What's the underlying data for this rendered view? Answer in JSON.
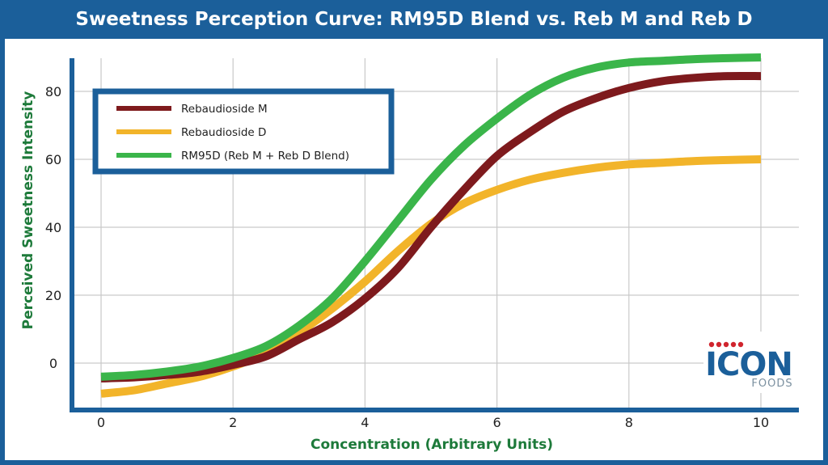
{
  "chart_data": {
    "type": "line",
    "title": "Sweetness Perception Curve: RM95D Blend vs. Reb M and Reb D",
    "xlabel": "Concentration (Arbitrary Units)",
    "ylabel": "Perceived Sweetness Intensity",
    "xlim": [
      -0.4,
      10.5
    ],
    "ylim": [
      -14,
      90
    ],
    "xticks": [
      0,
      2,
      4,
      6,
      8,
      10
    ],
    "yticks": [
      0,
      20,
      40,
      60,
      80
    ],
    "grid": true,
    "legend_position": "top-left",
    "x": [
      0,
      0.5,
      1,
      1.5,
      2,
      2.5,
      3,
      3.5,
      4,
      4.5,
      5,
      5.5,
      6,
      6.5,
      7,
      7.5,
      8,
      8.5,
      9,
      9.5,
      10
    ],
    "series": [
      {
        "name": "Rebaudioside M",
        "color": "#7e1a1d",
        "values": [
          -4.5,
          -4.2,
          -3.5,
          -2.5,
          -0.5,
          2,
          7,
          12,
          19,
          28,
          40,
          51,
          61,
          68,
          74,
          78,
          81,
          83,
          84,
          84.5,
          84.5
        ]
      },
      {
        "name": "Rebaudioside D",
        "color": "#f2b42a",
        "values": [
          -9,
          -8,
          -6,
          -4,
          -1,
          3,
          9,
          16,
          24,
          33,
          41,
          47,
          51,
          54,
          56,
          57.5,
          58.5,
          59,
          59.5,
          59.8,
          60
        ]
      },
      {
        "name": "RM95D (Reb M + Reb D Blend)",
        "color": "#3ab54a",
        "values": [
          -4,
          -3.5,
          -2.5,
          -1,
          1.5,
          5,
          11,
          19,
          30,
          42,
          54,
          64,
          72,
          79,
          84,
          87,
          88.5,
          89,
          89.5,
          89.8,
          90
        ]
      }
    ]
  },
  "logo": {
    "wordmark": "ICON",
    "subtext": "FOODS",
    "dot_color": "#d0242d",
    "text_color": "#1b5f9a"
  }
}
